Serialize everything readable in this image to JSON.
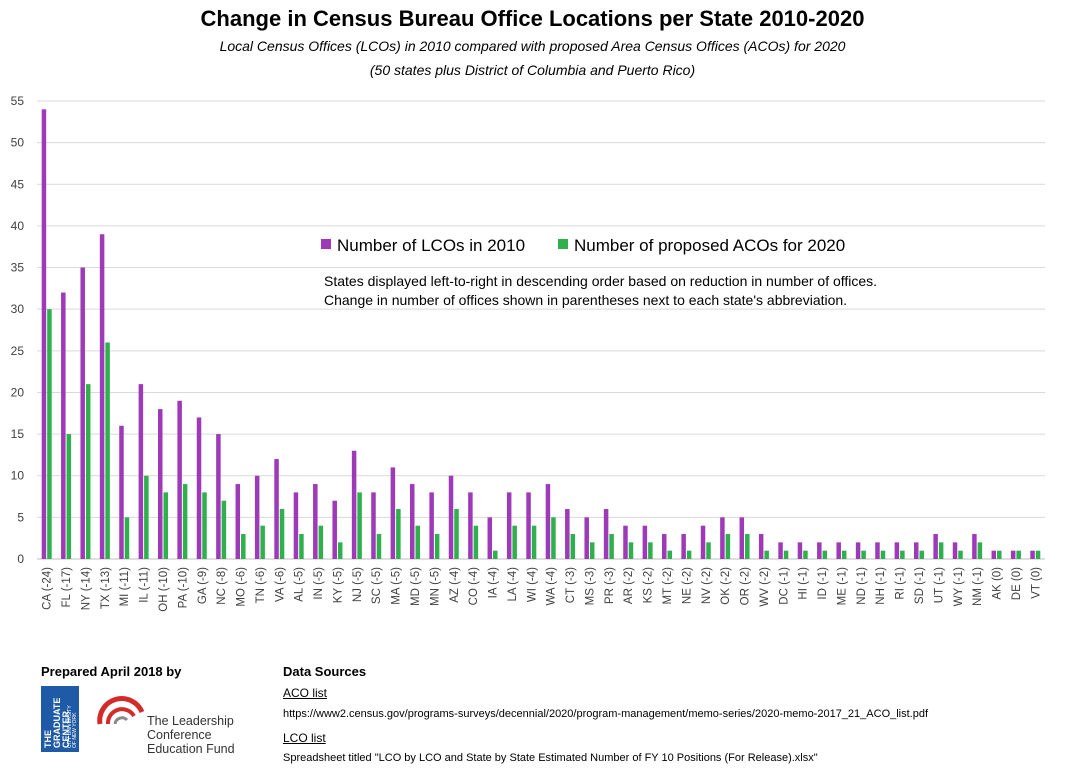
{
  "title": "Change in Census Bureau Office Locations per State 2010-2020",
  "subtitle1": "Local Census Offices (LCOs) in 2010 compared with proposed Area Census Offices (ACOs) for 2020",
  "subtitle2": "(50 states plus District of Columbia and Puerto Rico)",
  "annotation": [
    "States displayed left-to-right in descending order based on reduction in number of offices.",
    "Change in number of offices shown in parentheses next to each state's abbreviation."
  ],
  "colors": {
    "lco": "#9e3ab8",
    "aco": "#2fb04c",
    "grid": "#d9d9d9"
  },
  "chart_data": {
    "type": "bar",
    "categories": [
      "CA (-24)",
      "FL (-17)",
      "NY (-14)",
      "TX (-13)",
      "MI (-11)",
      "IL (-11)",
      "OH (-10)",
      "PA (-10)",
      "GA (-9)",
      "NC (-8)",
      "MO (-6)",
      "TN (-6)",
      "VA (-6)",
      "AL (-5)",
      "IN (-5)",
      "KY (-5)",
      "NJ (-5)",
      "SC (-5)",
      "MA (-5)",
      "MD (-5)",
      "MN (-5)",
      "AZ (-4)",
      "CO (-4)",
      "IA (-4)",
      "LA (-4)",
      "WI (-4)",
      "WA (-4)",
      "CT (-3)",
      "MS (-3)",
      "PR (-3)",
      "AR (-2)",
      "KS (-2)",
      "MT (-2)",
      "NE (-2)",
      "NV (-2)",
      "OK (-2)",
      "OR (-2)",
      "WV (-2)",
      "DC (-1)",
      "HI (-1)",
      "ID (-1)",
      "ME (-1)",
      "ND (-1)",
      "NH (-1)",
      "RI (-1)",
      "SD (-1)",
      "UT (-1)",
      "WY (-1)",
      "NM (-1)",
      "AK (0)",
      "DE (0)",
      "VT (0)"
    ],
    "series": [
      {
        "name": "Number of LCOs in 2010",
        "values": [
          54,
          32,
          35,
          39,
          16,
          21,
          18,
          19,
          17,
          15,
          9,
          10,
          12,
          8,
          9,
          7,
          13,
          8,
          11,
          9,
          8,
          10,
          8,
          5,
          8,
          8,
          9,
          6,
          5,
          6,
          4,
          4,
          3,
          3,
          4,
          5,
          5,
          3,
          2,
          2,
          2,
          2,
          2,
          2,
          2,
          2,
          3,
          2,
          3,
          1,
          1,
          1
        ]
      },
      {
        "name": "Number of proposed ACOs for 2020",
        "values": [
          30,
          15,
          21,
          26,
          5,
          10,
          8,
          9,
          8,
          7,
          3,
          4,
          6,
          3,
          4,
          2,
          8,
          3,
          6,
          4,
          3,
          6,
          4,
          1,
          4,
          4,
          5,
          3,
          2,
          3,
          2,
          2,
          1,
          1,
          2,
          3,
          3,
          1,
          1,
          1,
          1,
          1,
          1,
          1,
          1,
          1,
          2,
          1,
          2,
          1,
          1,
          1
        ]
      }
    ],
    "ylim": [
      0,
      55
    ],
    "yticks": [
      0,
      5,
      10,
      15,
      20,
      25,
      30,
      35,
      40,
      45,
      50,
      55
    ],
    "grid": true,
    "legend": "center"
  },
  "footer": {
    "prepared": "Prepared April 2018 by",
    "gc_logo_name": "THE\nGRADUATE\nCENTER",
    "gc_logo_sub": "CITY UNIVERSITY\nOF NEW YORK",
    "lccef_name": "The Leadership\nConference\nEducation Fund",
    "sources_title": "Data Sources",
    "aco_label": "ACO list",
    "aco_url": "https://www2.census.gov/programs-surveys/decennial/2020/program-management/memo-series/2020-memo-2017_21_ACO_list.pdf",
    "lco_label": "LCO list",
    "lco_text": "Spreadsheet titled \"LCO by LCO and State by State Estimated Number of FY 10 Positions (For Release).xlsx\""
  }
}
